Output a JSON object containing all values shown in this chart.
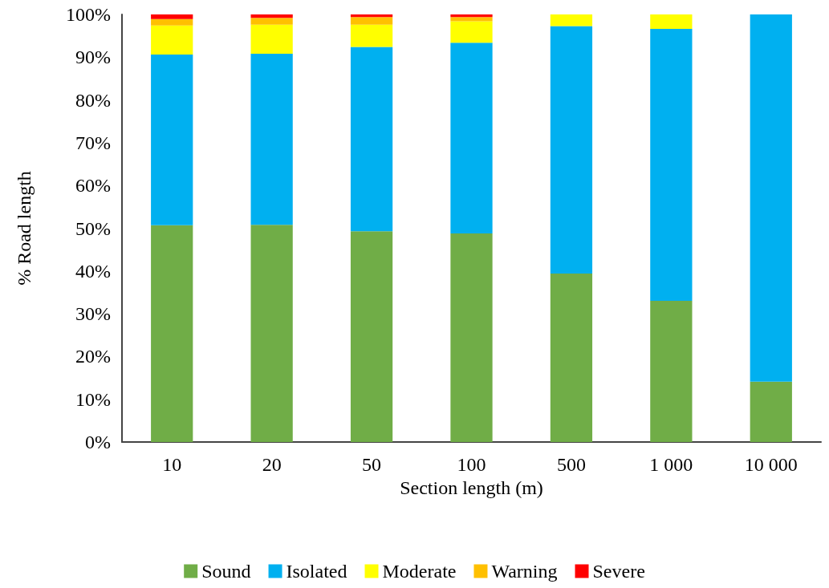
{
  "chart_data": {
    "type": "bar",
    "stacked": true,
    "xlabel": "Section length (m)",
    "ylabel": "% Road length",
    "categories": [
      "10",
      "20",
      "50",
      "100",
      "500",
      "1 000",
      "10 000"
    ],
    "series": [
      {
        "name": "Sound",
        "color": "#70ad47",
        "values": [
          50.7,
          50.8,
          49.3,
          48.8,
          39.4,
          33.0,
          14.1
        ]
      },
      {
        "name": "Isolated",
        "color": "#00b0f0",
        "values": [
          39.9,
          40.0,
          43.1,
          44.6,
          57.9,
          63.6,
          85.9
        ]
      },
      {
        "name": "Moderate",
        "color": "#ffff00",
        "values": [
          6.8,
          6.8,
          5.2,
          5.0,
          2.7,
          3.4,
          0
        ]
      },
      {
        "name": "Warning",
        "color": "#ffc000",
        "values": [
          1.5,
          1.6,
          1.8,
          1.0,
          0,
          0,
          0
        ]
      },
      {
        "name": "Severe",
        "color": "#ff0000",
        "values": [
          1.1,
          0.8,
          0.6,
          0.6,
          0,
          0,
          0
        ]
      }
    ],
    "ylim": [
      0,
      100
    ],
    "yticks": [
      {
        "value": 0,
        "label": "0%"
      },
      {
        "value": 10,
        "label": "10%"
      },
      {
        "value": 20,
        "label": "20%"
      },
      {
        "value": 30,
        "label": "30%"
      },
      {
        "value": 40,
        "label": "40%"
      },
      {
        "value": 50,
        "label": "50%"
      },
      {
        "value": 60,
        "label": "60%"
      },
      {
        "value": 70,
        "label": "70%"
      },
      {
        "value": 80,
        "label": "80%"
      },
      {
        "value": 90,
        "label": "90%"
      },
      {
        "value": 100,
        "label": "100%"
      }
    ],
    "grid": false,
    "legend": "bottom"
  }
}
